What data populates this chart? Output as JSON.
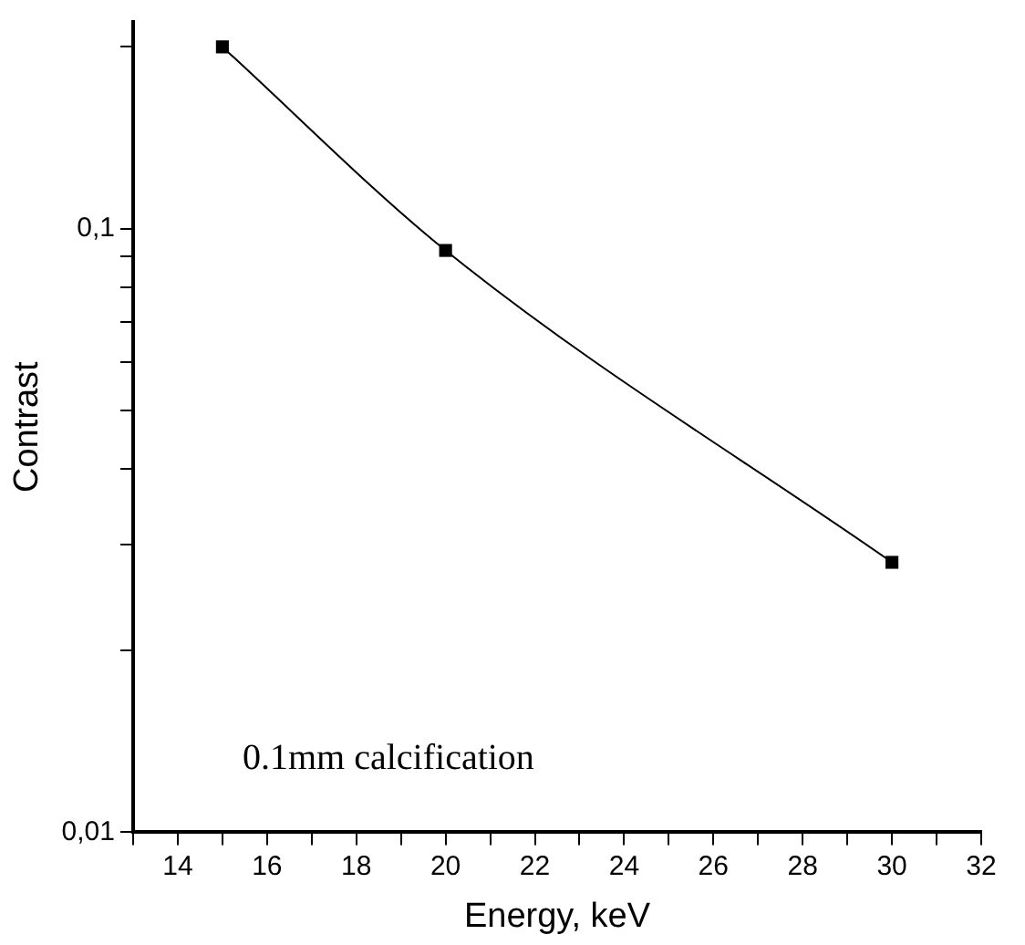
{
  "chart_data": {
    "type": "line",
    "xlabel": "Energy, keV",
    "ylabel": "Contrast",
    "x": [
      15,
      20,
      30
    ],
    "series": [
      {
        "color": "#000000",
        "values": [
          0.2,
          0.092,
          0.028
        ]
      }
    ],
    "xlim": [
      13,
      32
    ],
    "xticks": [
      {
        "value": 13,
        "label": null
      },
      14,
      {
        "value": 15,
        "label": null
      },
      16,
      {
        "value": 17,
        "label": null
      },
      18,
      {
        "value": 19,
        "label": null
      },
      20,
      {
        "value": 21,
        "label": null
      },
      22,
      {
        "value": 23,
        "label": null
      },
      24,
      {
        "value": 25,
        "label": null
      },
      26,
      {
        "value": 27,
        "label": null
      },
      28,
      {
        "value": 29,
        "label": null
      },
      30,
      {
        "value": 31,
        "label": null
      },
      32
    ],
    "ylim": [
      0.01,
      0.22
    ],
    "yticks": [
      {
        "value": 0.01,
        "label": "0,01"
      },
      {
        "value": 0.02,
        "label": null
      },
      {
        "value": 0.03,
        "label": null
      },
      {
        "value": 0.04,
        "label": null
      },
      {
        "value": 0.05,
        "label": null
      },
      {
        "value": 0.06,
        "label": null
      },
      {
        "value": 0.07,
        "label": null
      },
      {
        "value": 0.08,
        "label": null
      },
      {
        "value": 0.09,
        "label": null
      },
      {
        "value": 0.1,
        "label": "0,1"
      },
      {
        "value": 0.2,
        "label": null
      }
    ],
    "log": true,
    "grid": false,
    "legend": false,
    "marker": "square",
    "line_style": "solid",
    "annotations": [
      "0.1mm calcification"
    ]
  }
}
